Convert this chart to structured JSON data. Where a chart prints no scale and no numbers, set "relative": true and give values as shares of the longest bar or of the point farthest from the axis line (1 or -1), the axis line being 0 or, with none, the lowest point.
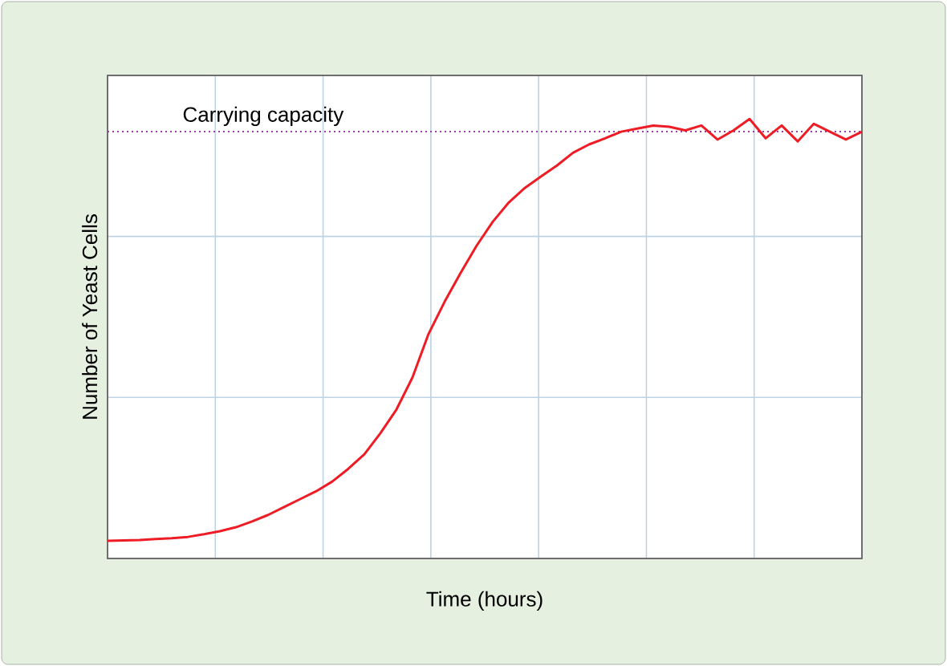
{
  "chart_data": {
    "type": "line",
    "relative": true,
    "xlabel": "Time (hours)",
    "ylabel": "Number of Yeast Cells",
    "categories": [
      null,
      null,
      null,
      null,
      null,
      null,
      null,
      null,
      null,
      null,
      null,
      null,
      null,
      null,
      null,
      null,
      null,
      null,
      null,
      null,
      null,
      null,
      null,
      null,
      null,
      null,
      null,
      null,
      null,
      null,
      null,
      null,
      null,
      null,
      null,
      null,
      null,
      null,
      null,
      null,
      null,
      null,
      null,
      null,
      null,
      null,
      null,
      null
    ],
    "series": [
      {
        "color": "#ee1c25",
        "values": [
          0.04,
          0.041,
          0.042,
          0.044,
          0.046,
          0.049,
          0.055,
          0.062,
          0.071,
          0.084,
          0.099,
          0.117,
          0.135,
          0.153,
          0.175,
          0.204,
          0.237,
          0.285,
          0.339,
          0.412,
          0.511,
          0.584,
          0.65,
          0.712,
          0.766,
          0.81,
          0.843,
          0.869,
          0.894,
          0.923,
          0.942,
          0.956,
          0.971,
          0.978,
          0.985,
          0.982,
          0.974,
          0.985,
          0.953,
          0.974,
          1,
          0.956,
          0.985,
          0.949,
          0.989,
          0.971,
          0.953,
          0.971
        ]
      }
    ],
    "ref_lines": [
      {
        "axis": "y",
        "value": 0.971,
        "label": "Carrying capacity",
        "color": "#9b3fa0",
        "line_style": "dotted"
      }
    ],
    "grid": true,
    "tick_labels": false,
    "marker": "none",
    "line_style": "solid"
  }
}
